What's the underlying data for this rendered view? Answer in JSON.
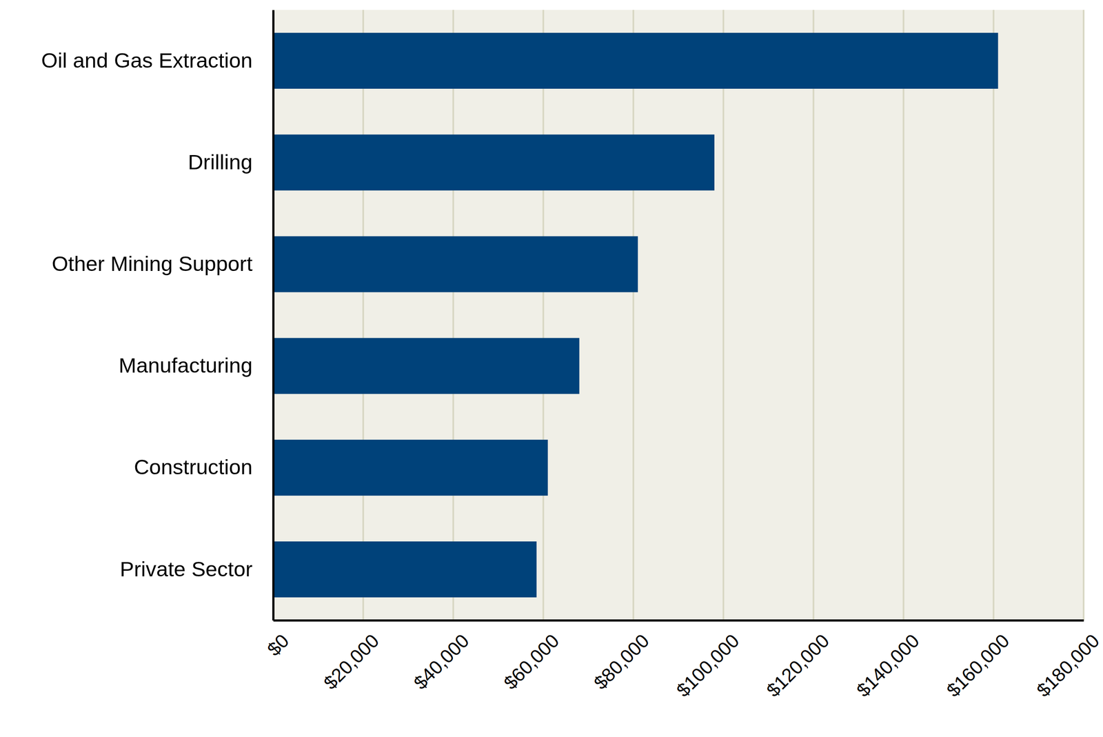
{
  "chart_data": {
    "type": "bar",
    "orientation": "horizontal",
    "categories": [
      "Oil and Gas Extraction",
      "Drilling",
      "Other Mining Support",
      "Manufacturing",
      "Construction",
      "Private Sector"
    ],
    "values": [
      161000,
      98000,
      81000,
      68000,
      61000,
      58500
    ],
    "color": "#00427a",
    "xlim": [
      0,
      180000
    ],
    "xticks": [
      {
        "value": 0,
        "label": "$0"
      },
      {
        "value": 20000,
        "label": "$20,000"
      },
      {
        "value": 40000,
        "label": "$40,000"
      },
      {
        "value": 60000,
        "label": "$60,000"
      },
      {
        "value": 80000,
        "label": "$80,000"
      },
      {
        "value": 100000,
        "label": "$100,000"
      },
      {
        "value": 120000,
        "label": "$120,000"
      },
      {
        "value": 140000,
        "label": "$140,000"
      },
      {
        "value": 160000,
        "label": "$160,000"
      },
      {
        "value": 180000,
        "label": "$180,000"
      }
    ],
    "grid": true
  }
}
